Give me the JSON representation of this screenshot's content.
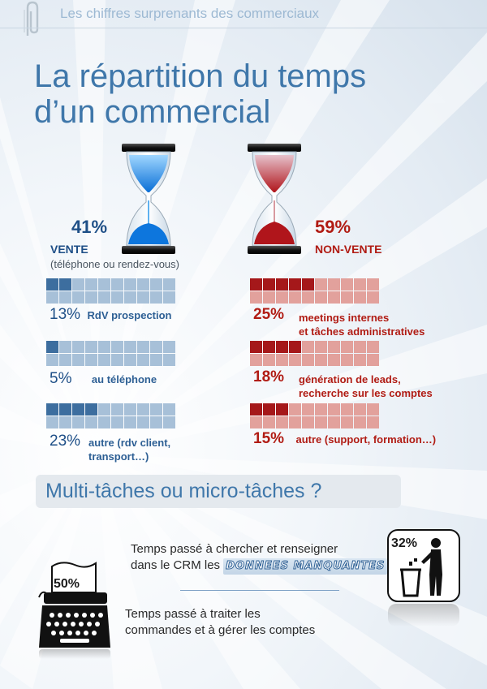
{
  "header": {
    "supertitle": "Les chiffres surprenants des commerciaux",
    "title": "La répartition du temps d’un commercial"
  },
  "vente": {
    "percent": "41%",
    "label": "VENTE",
    "sublabel": "(téléphone ou rendez-vous)",
    "items": [
      {
        "percent": "13%",
        "desc": "RdV prospection",
        "filled": 2
      },
      {
        "percent": "5%",
        "desc": "au téléphone",
        "filled": 1
      },
      {
        "percent": "23%",
        "desc_line1": "autre (rdv client,",
        "desc_line2": "transport…)",
        "filled": 4
      }
    ]
  },
  "nonvente": {
    "percent": "59%",
    "label": "NON-VENTE",
    "items": [
      {
        "percent": "25%",
        "desc_line1": "meetings internes",
        "desc_line2": "et tâches administratives",
        "filled": 5
      },
      {
        "percent": "18%",
        "desc_line1": "génération de leads,",
        "desc_line2": "recherche sur les comptes",
        "filled": 4
      },
      {
        "percent": "15%",
        "desc": "autre (support, formation…)",
        "filled": 3
      }
    ]
  },
  "multitask": {
    "title": "Multi-tâches ou micro-tâches ?",
    "crm_line1": "Temps passé à chercher et renseigner",
    "crm_line2_prefix": "dans le CRM les",
    "crm_highlight": "DONNEES MANQUANTES",
    "crm_percent": "32%",
    "orders_line1": "Temps passé à traiter les",
    "orders_line2": "commandes et à gérer les comptes",
    "orders_percent": "50%"
  },
  "colors": {
    "blue_accent": "#1e4f87",
    "red_accent": "#b11c14",
    "title_blue": "#3f77aa"
  },
  "icons": {
    "clip": "paperclip-icon",
    "hourglass_blue": "hourglass-blue-icon",
    "hourglass_red": "hourglass-red-icon",
    "trash": "trash-can-person-icon",
    "typewriter": "typewriter-icon"
  }
}
